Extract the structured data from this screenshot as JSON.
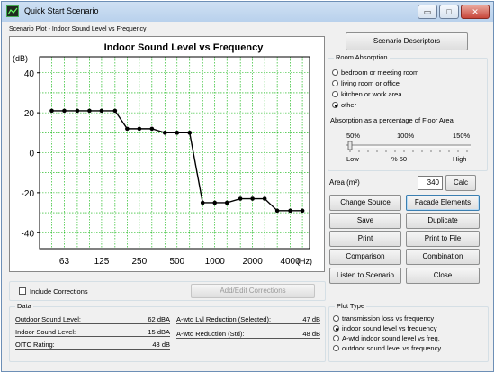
{
  "window": {
    "title": "Quick Start Scenario",
    "controls": [
      "▭",
      "□",
      "✕"
    ]
  },
  "plot_caption": "Scenario Plot - Indoor Sound Level vs Frequency",
  "chart_data": {
    "type": "line",
    "title": "Indoor Sound Level vs Frequency",
    "ylabel": "(dB)",
    "xlabel": "(Hz)",
    "ylim": [
      -48,
      48
    ],
    "yticks": [
      40,
      20,
      0,
      -20,
      -40
    ],
    "xticks": [
      "63",
      "125",
      "250",
      "500",
      "1000",
      "2000",
      "4000"
    ],
    "x_scale": "log (1/3-octave bands)",
    "grid": true,
    "series": [
      {
        "x": [
          50,
          63,
          80,
          100,
          125,
          160,
          200,
          250,
          315,
          400,
          500,
          630,
          800,
          1000,
          1250,
          1600,
          2000,
          2500,
          3150,
          4000,
          5000
        ],
        "values": [
          21,
          21,
          21,
          21,
          21,
          21,
          12,
          12,
          12,
          10,
          10,
          10,
          -25,
          -25,
          -25,
          -23,
          -23,
          -23,
          -29,
          -29,
          -29
        ]
      }
    ],
    "color": "#00b000"
  },
  "scenario_descriptors_button": "Scenario Descriptors",
  "room_absorption": {
    "title": "Room Absorption",
    "options": [
      {
        "label": "bedroom or meeting room",
        "selected": false
      },
      {
        "label": "living room or office",
        "selected": false
      },
      {
        "label": "kitchen or work area",
        "selected": false
      },
      {
        "label": "other",
        "selected": true
      }
    ],
    "percentage_label": "Absorption as a percentage of Floor Area",
    "scale_ticks": [
      "50%",
      "100%",
      "150%"
    ],
    "low": "Low",
    "value_label": "% 50",
    "high": "High",
    "slider_value_percent": 50
  },
  "area": {
    "label": "Area (m²)",
    "value": "340",
    "calc_button": "Calc"
  },
  "buttons": {
    "change_source": "Change Source",
    "facade_elements": "Facade Elements",
    "save": "Save",
    "duplicate": "Duplicate",
    "print": "Print",
    "print_to_file": "Print to File",
    "comparison": "Comparison",
    "combination": "Combination",
    "listen": "Listen to Scenario",
    "close": "Close"
  },
  "corrections": {
    "include_label": "Include Corrections",
    "include_checked": false,
    "add_edit_button": "Add/Edit Corrections"
  },
  "data_group": {
    "title": "Data",
    "rows_left": [
      {
        "label": "Outdoor Sound Level:",
        "value": "62 dBA"
      },
      {
        "label": "Indoor Sound Level:",
        "value": "15 dBA"
      },
      {
        "label": "OITC Rating:",
        "value": "43 dB"
      }
    ],
    "rows_right": [
      {
        "label": "A-wtd Lvl Reduction (Selected):",
        "value": "47 dB"
      },
      {
        "label": "A-wtd Reduction (Std):",
        "value": "48 dB"
      }
    ]
  },
  "plot_type": {
    "title": "Plot Type",
    "options": [
      {
        "label": "transmission loss vs frequency",
        "selected": false
      },
      {
        "label": "indoor sound level vs frequency",
        "selected": true
      },
      {
        "label": "A-wtd indoor sound level vs freq.",
        "selected": false
      },
      {
        "label": "outdoor sound level vs frequency",
        "selected": false
      }
    ]
  }
}
